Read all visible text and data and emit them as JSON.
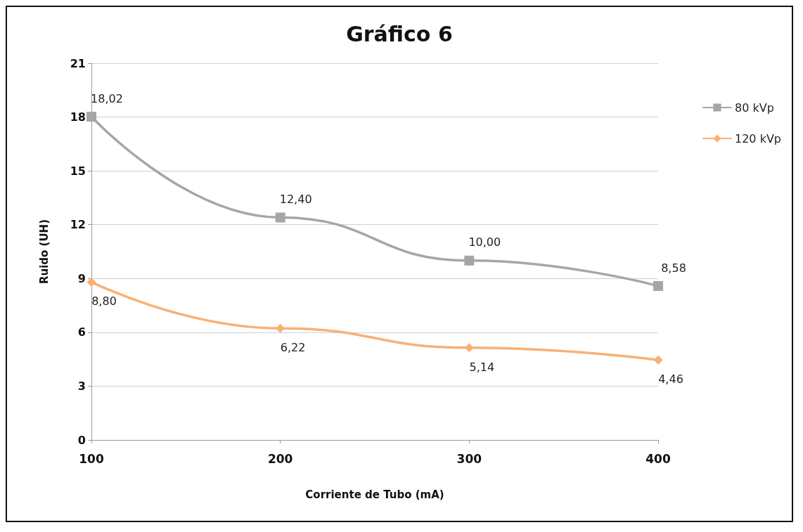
{
  "chart_data": {
    "type": "line",
    "title": "Gráfico 6",
    "xlabel": "Corriente de Tubo (mA)",
    "ylabel": "Ruido (UH)",
    "categories": [
      "100",
      "200",
      "300",
      "400"
    ],
    "series": [
      {
        "name": "80 kVp",
        "color": "#a6a6a6",
        "marker": "square",
        "values": [
          18.02,
          12.4,
          10.0,
          8.58
        ],
        "value_labels": [
          "18,02",
          "12,40",
          "10,00",
          "8,58"
        ]
      },
      {
        "name": "120 kVp",
        "color": "#f9b073",
        "marker": "diamond",
        "values": [
          8.8,
          6.22,
          5.14,
          4.46
        ],
        "value_labels": [
          "8,80",
          "6,22",
          "5,14",
          "4,46"
        ]
      }
    ],
    "ylim": [
      0,
      21
    ],
    "yticks": [
      0,
      3,
      6,
      9,
      12,
      15,
      18,
      21
    ],
    "grid": "y",
    "legend": "right"
  }
}
